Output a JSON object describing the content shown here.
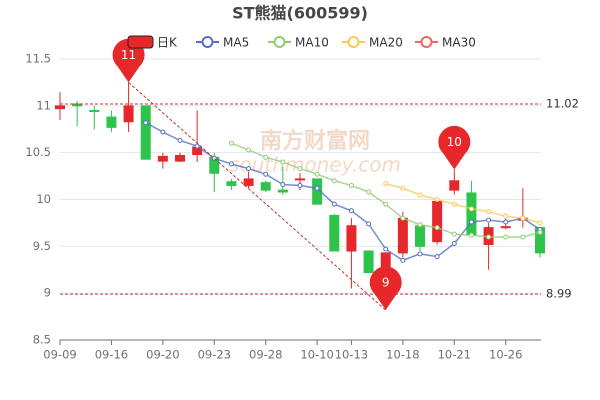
{
  "chart_data": {
    "type": "candlestick",
    "title": "ST熊猫(600599)",
    "watermark": [
      "南方财富网",
      "southmoney.com"
    ],
    "categories": [
      "09-09",
      null,
      null,
      "09-16",
      null,
      null,
      "09-20",
      null,
      null,
      "09-23",
      null,
      null,
      "09-28",
      null,
      null,
      "10-10",
      null,
      "10-13",
      null,
      null,
      "10-18",
      null,
      null,
      "10-21",
      null,
      null,
      "10-26",
      null,
      null
    ],
    "series": [
      {
        "name": "日K",
        "type": "candlestick",
        "up_color": "#e6282a",
        "down_color": "#2ec44c",
        "open": [
          10.97,
          11.02,
          10.95,
          10.88,
          10.83,
          11.0,
          10.41,
          10.41,
          10.48,
          10.45,
          10.19,
          10.15,
          10.18,
          10.1,
          10.21,
          10.22,
          9.83,
          9.45,
          9.45,
          8.92,
          9.43,
          9.72,
          9.55,
          10.1,
          10.07,
          9.52,
          9.7,
          9.78,
          9.7
        ],
        "close": [
          11.0,
          11.0,
          10.94,
          10.77,
          11.0,
          10.43,
          10.46,
          10.47,
          10.56,
          10.28,
          10.15,
          10.22,
          10.1,
          10.08,
          10.22,
          9.95,
          9.45,
          9.72,
          9.22,
          9.43,
          9.8,
          9.5,
          9.98,
          10.2,
          9.62,
          9.7,
          9.71,
          9.8,
          9.43
        ],
        "high": [
          11.15,
          11.05,
          11.0,
          10.95,
          11.25,
          11.0,
          10.5,
          10.5,
          10.95,
          10.5,
          10.22,
          10.3,
          10.2,
          10.35,
          10.28,
          10.22,
          9.85,
          9.8,
          9.45,
          9.43,
          9.87,
          9.75,
          10.0,
          10.32,
          10.2,
          9.75,
          9.85,
          10.12,
          9.7
        ],
        "low": [
          10.85,
          10.78,
          10.75,
          10.72,
          10.72,
          10.43,
          10.33,
          10.4,
          10.4,
          10.08,
          10.1,
          10.12,
          10.08,
          10.05,
          10.1,
          9.95,
          9.45,
          9.05,
          9.22,
          8.82,
          9.38,
          9.45,
          9.52,
          10.05,
          9.6,
          9.25,
          9.68,
          9.7,
          9.38
        ]
      },
      {
        "name": "MA5",
        "color": "#5470c6",
        "values": [
          null,
          null,
          null,
          null,
          null,
          10.82,
          10.72,
          10.63,
          10.57,
          10.44,
          10.38,
          10.33,
          10.27,
          10.16,
          10.15,
          10.12,
          9.95,
          9.88,
          9.74,
          9.47,
          9.35,
          9.42,
          9.39,
          9.53,
          9.76,
          9.78,
          9.76,
          9.8,
          9.68
        ]
      },
      {
        "name": "MA10",
        "color": "#91cc75",
        "values": [
          null,
          null,
          null,
          null,
          null,
          null,
          null,
          null,
          null,
          null,
          10.6,
          10.53,
          10.45,
          10.4,
          10.33,
          10.27,
          10.2,
          10.15,
          10.08,
          9.95,
          9.8,
          9.73,
          9.7,
          9.63,
          9.62,
          9.6,
          9.6,
          9.6,
          9.65
        ]
      },
      {
        "name": "MA20",
        "color": "#fac858",
        "values": [
          null,
          null,
          null,
          null,
          null,
          null,
          null,
          null,
          null,
          null,
          null,
          null,
          null,
          null,
          null,
          null,
          null,
          null,
          null,
          10.17,
          10.12,
          10.05,
          10.0,
          9.95,
          9.9,
          9.87,
          9.82,
          9.8,
          9.75
        ]
      },
      {
        "name": "MA30",
        "color": "#ee6666"
      }
    ],
    "ylim": [
      8.5,
      11.5
    ],
    "yticks": [
      8.5,
      9,
      9.5,
      10,
      10.5,
      11,
      11.5
    ],
    "grid": true,
    "mark_lines": [
      11.02,
      8.99
    ],
    "mark_points": [
      {
        "value": 11.25,
        "label": "11"
      },
      {
        "value": 10.32,
        "label": "10"
      },
      {
        "value": 8.82,
        "label": "9"
      }
    ],
    "mark_color": "#c23531"
  }
}
